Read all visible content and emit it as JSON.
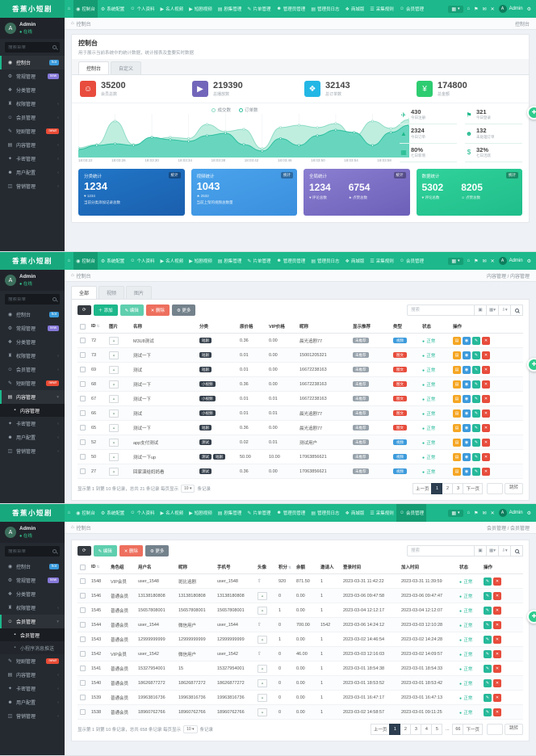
{
  "brand": {
    "logo": "香蕉小短剧"
  },
  "user": {
    "name": "Admin",
    "status": "在线"
  },
  "crumb_home": "控制台",
  "navbar": {
    "items": [
      {
        "icon": "⌂",
        "label": ""
      },
      {
        "icon": "◉",
        "label": "控制台"
      },
      {
        "icon": "⚙",
        "label": "系统配置"
      },
      {
        "icon": "☺",
        "label": "个人资料"
      },
      {
        "icon": "▶",
        "label": "名人视频"
      },
      {
        "icon": "▶",
        "label": "短剧视频"
      },
      {
        "icon": "▤",
        "label": "剧集管理"
      },
      {
        "icon": "✎",
        "label": "片单管理"
      },
      {
        "icon": "☻",
        "label": "管理员管理"
      },
      {
        "icon": "▤",
        "label": "管理员日志"
      },
      {
        "icon": "❖",
        "label": "商城版"
      },
      {
        "icon": "☰",
        "label": "采集规则"
      },
      {
        "icon": "☺",
        "label": "会员管理"
      }
    ],
    "right_icons": [
      {
        "name": "home-icon",
        "glyph": "⌂"
      },
      {
        "name": "bell-icon",
        "glyph": "⚑"
      },
      {
        "name": "message-icon",
        "glyph": "✉"
      },
      {
        "name": "fullscreen-icon",
        "glyph": "✕"
      }
    ],
    "user": "Admin"
  },
  "sidebar": {
    "search_placeholder": "搜索菜单",
    "items": [
      {
        "icon": "◉",
        "label": "控制台",
        "badge": "hot",
        "badge_color": "blue"
      },
      {
        "icon": "⚙",
        "label": "常规管理",
        "badge": "new",
        "badge_color": "purple"
      },
      {
        "icon": "❖",
        "label": "分类管理"
      },
      {
        "icon": "♜",
        "label": "权限管理",
        "arrow": true
      },
      {
        "icon": "☺",
        "label": "会员管理",
        "arrow": true
      },
      {
        "icon": "✎",
        "label": "短剧管理",
        "badge": "new!",
        "badge_color": "red"
      },
      {
        "icon": "▤",
        "label": "内容管理",
        "arrow": true
      },
      {
        "icon": "✦",
        "label": "卡密管理",
        "arrow": true
      },
      {
        "icon": "☻",
        "label": "用户配置",
        "arrow": true
      },
      {
        "icon": "◫",
        "label": "营销管理",
        "arrow": true
      }
    ]
  },
  "screens": [
    {
      "nav_active": 1,
      "sidebar_active": 0,
      "crumb_right": "控制台"
    },
    {
      "nav_active": 1,
      "sidebar_expand": {
        "index": 6,
        "children": [
          "内容管理"
        ],
        "active_child": 0
      },
      "crumb_right": "内容管理 / 内容管理"
    },
    {
      "nav_active": 12,
      "sidebar_expand": {
        "index": 4,
        "children": [
          "会员管理",
          "小程序消息推送"
        ],
        "active_child": 0
      },
      "crumb_right": "会员管理 / 会员管理"
    }
  ],
  "dashboard": {
    "title": "控制台",
    "desc": "用于展示当前系统中的统计数据，统计报表及重要实时数据",
    "tabs": [
      "控制台",
      "自定义"
    ],
    "active_tab": 0,
    "stat_cards": [
      {
        "glyph": "☺",
        "color": "#e84c3d",
        "value": "35200",
        "label": "会员总数"
      },
      {
        "glyph": "▶",
        "color": "#7266ba",
        "value": "219390",
        "label": "总播放数"
      },
      {
        "glyph": "❖",
        "color": "#23b7e5",
        "value": "32143",
        "label": "总订单数"
      },
      {
        "glyph": "¥",
        "color": "#2ecc71",
        "value": "174800",
        "label": "总金额"
      }
    ],
    "mini_stats": [
      {
        "glyph": "✈",
        "value": "430",
        "label": "今日注册"
      },
      {
        "glyph": "⚑",
        "value": "321",
        "label": "今日登录"
      },
      {
        "glyph": "▲",
        "value": "2324",
        "label": "今日订单"
      },
      {
        "glyph": "☻",
        "value": "132",
        "label": "未处理订单"
      },
      {
        "glyph": "▦",
        "value": "80%",
        "label": "七日新增"
      },
      {
        "glyph": "$",
        "value": "32%",
        "label": "七日活跃"
      }
    ],
    "big_cards": [
      {
        "title": "分类统计",
        "badge": "统计",
        "value": "1234",
        "foot1": "♥ 1234",
        "foot2": "当前分类添加记录总数",
        "bg": "linear-gradient(160deg,#2176c7,#1b5fae)"
      },
      {
        "title": "视频统计",
        "badge": "统计",
        "value": "1043",
        "foot1": "★ 2532",
        "foot2": "当前上架的视频总数量",
        "bg": "linear-gradient(160deg,#4aa3ec,#3b8fdd)"
      },
      {
        "title": "全局统计",
        "badge": "统计",
        "cols": [
          {
            "value": "1234",
            "label": "♥ 评论总数"
          },
          {
            "value": "6754",
            "label": "★ 点赞总数"
          }
        ],
        "bg": "linear-gradient(160deg,#8a7fd1,#6c5fb8)"
      },
      {
        "title": "数据统计",
        "badge": "统计",
        "cols": [
          {
            "value": "5302",
            "label": "♥ 评论总数"
          },
          {
            "value": "8205",
            "label": "☺ 点赞总数"
          }
        ],
        "bg": "linear-gradient(160deg,#31d29b,#1fbd8a)"
      }
    ]
  },
  "chart_data": {
    "type": "area",
    "title": "",
    "legend": [
      "成交数",
      "订单数"
    ],
    "legend_position": "top",
    "x": [
      "18:03:22",
      "18:03:26",
      "18:03:30",
      "18:03:34",
      "18:03:38",
      "18:03:42",
      "18:03:46",
      "18:03:50",
      "18:03:54",
      "18:03:58"
    ],
    "series": [
      {
        "name": "订单数",
        "color": "#8fdcc6",
        "fill": "#b8ecdc",
        "values": [
          22,
          30,
          88,
          30,
          42,
          48,
          45,
          80,
          62,
          68,
          20,
          72,
          78,
          72,
          82,
          50,
          88,
          70,
          92
        ]
      },
      {
        "name": "成交数",
        "color": "#2fbfa0",
        "fill": "#5ed3ba",
        "values": [
          18,
          28,
          32,
          28,
          48,
          42,
          38,
          52,
          58,
          30,
          14,
          45,
          28,
          52,
          66,
          60,
          28,
          60,
          78
        ]
      }
    ],
    "ylim": [
      0,
      100
    ],
    "grid": "vertical"
  },
  "content_page": {
    "tabs": [
      "全部",
      "视频",
      "图片"
    ],
    "active_tab": 0,
    "toolbar": [
      {
        "label": "⟳",
        "type": "dark",
        "name": "refresh-button"
      },
      {
        "label": "＋ 添加",
        "type": "green",
        "name": "add-button"
      },
      {
        "label": "✎ 编辑",
        "type": "teal",
        "name": "edit-button"
      },
      {
        "label": "✕ 删除",
        "type": "red",
        "name": "delete-button"
      },
      {
        "label": "⚙ 更多",
        "type": "gray",
        "name": "more-button"
      }
    ],
    "search_placeholder": "搜索",
    "columns": [
      "",
      "ID",
      "图片",
      "名称",
      "分类",
      "原价格",
      "VIP价格",
      "昵称",
      "显示推荐",
      "类型",
      "状态",
      "操作"
    ],
    "rows": [
      {
        "id": "72",
        "name": "M3U8测试",
        "cats": [
          "短剧"
        ],
        "price": "0.36",
        "vip": "0.00",
        "nick": "晨光追剧77",
        "rec": "未推荐",
        "type": "视频",
        "type_color": "blue",
        "status": "正常"
      },
      {
        "id": "73",
        "name": "测试一下",
        "cats": [
          "短剧"
        ],
        "price": "0.01",
        "vip": "0.00",
        "nick": "15001205321",
        "rec": "未推荐",
        "type": "图文",
        "type_color": "red",
        "status": "正常"
      },
      {
        "id": "69",
        "name": "测试",
        "cats": [
          "短剧"
        ],
        "price": "0.01",
        "vip": "0.00",
        "nick": "16672238163",
        "rec": "未推荐",
        "type": "图文",
        "type_color": "red",
        "status": "正常"
      },
      {
        "id": "68",
        "name": "测试一下",
        "cats": [
          "小视频"
        ],
        "price": "0.36",
        "vip": "0.00",
        "nick": "16672238163",
        "rec": "未推荐",
        "type": "图文",
        "type_color": "red",
        "status": "正常"
      },
      {
        "id": "67",
        "name": "测试一下",
        "cats": [
          "小视频"
        ],
        "price": "0.01",
        "vip": "0.01",
        "nick": "16672238163",
        "rec": "未推荐",
        "type": "图文",
        "type_color": "red",
        "status": "正常"
      },
      {
        "id": "66",
        "name": "测试",
        "cats": [
          "小视频"
        ],
        "price": "0.01",
        "vip": "0.01",
        "nick": "晨光追剧77",
        "rec": "未推荐",
        "type": "图文",
        "type_color": "red",
        "status": "正常"
      },
      {
        "id": "65",
        "name": "测试一下",
        "cats": [
          "短剧"
        ],
        "price": "0.36",
        "vip": "0.00",
        "nick": "晨光追剧77",
        "rec": "未推荐",
        "type": "图文",
        "type_color": "red",
        "status": "正常"
      },
      {
        "id": "52",
        "name": "app支付测试",
        "cats": [
          "测试"
        ],
        "price": "0.02",
        "vip": "0.01",
        "nick": "测试用户",
        "rec": "未推荐",
        "type": "视频",
        "type_color": "blue",
        "status": "正常"
      },
      {
        "id": "50",
        "name": "测试一下up",
        "cats": [
          "测试",
          "短剧"
        ],
        "price": "50.00",
        "vip": "10.00",
        "nick": "17063856621",
        "rec": "未推荐",
        "type": "视频",
        "type_color": "blue",
        "status": "正常"
      },
      {
        "id": "27",
        "name": "回家演给妈妈看",
        "cats": [
          "测试"
        ],
        "price": "0.36",
        "vip": "0.00",
        "nick": "17063856621",
        "rec": "未推荐",
        "type": "视频",
        "type_color": "blue",
        "status": "正常"
      }
    ],
    "ops": [
      {
        "glyph": "▤",
        "color": "orange",
        "name": "detail-button"
      },
      {
        "glyph": "◉",
        "color": "blue",
        "name": "preview-button"
      },
      {
        "glyph": "✎",
        "color": "green",
        "name": "row-edit-button"
      },
      {
        "glyph": "✕",
        "color": "red",
        "name": "row-delete-button"
      }
    ],
    "footer_prefix": "显示第 1 到第 10 条记录，总共 21 条记录 每页显示",
    "page_size": "10",
    "footer_suffix": "条记录",
    "pages": [
      "上一页",
      "1",
      "2",
      "3",
      "下一页"
    ],
    "active_page": "1",
    "jump_label": "跳转"
  },
  "member_page": {
    "toolbar": [
      {
        "label": "⟳",
        "type": "dark",
        "name": "refresh-button"
      },
      {
        "label": "✎ 编辑",
        "type": "teal",
        "name": "edit-button"
      },
      {
        "label": "✕ 删除",
        "type": "red",
        "name": "delete-button"
      },
      {
        "label": "⚙ 更多",
        "type": "gray",
        "name": "more-button"
      }
    ],
    "search_placeholder": "搜索",
    "columns": [
      "",
      "ID",
      "角色组",
      "用户名",
      "昵称",
      "手机号",
      "头像",
      "积分",
      "余额",
      "邀请人",
      "登录时间",
      "加入时间",
      "状态",
      "操作"
    ],
    "rows": [
      {
        "id": "1548",
        "role": "VIP会员",
        "username": "user_1548",
        "nick": "斑比追剧",
        "phone": "user_1548",
        "avatar": "up",
        "score": "920",
        "balance": "871.50",
        "inviter": "1",
        "login": "2023-03-31 11:42:22",
        "join": "2023-03-31 11:39:59",
        "status": "正常"
      },
      {
        "id": "1546",
        "role": "普通会员",
        "username": "13138180808",
        "nick": "13138180808",
        "phone": "13138180808",
        "avatar": "img",
        "score": "0",
        "balance": "0.00",
        "inviter": "1",
        "login": "2023-03-06 09:47:58",
        "join": "2023-03-06 09:47:47",
        "status": "正常"
      },
      {
        "id": "1545",
        "role": "普通会员",
        "username": "15657808001",
        "nick": "15657808001",
        "phone": "15657808001",
        "avatar": "img",
        "score": "1",
        "balance": "0.00",
        "inviter": "1",
        "login": "2023-03-04 12:12:17",
        "join": "2023-03-04 12:12:07",
        "status": "正常"
      },
      {
        "id": "1544",
        "role": "普通会员",
        "username": "user_1544",
        "nick": "微信用户",
        "phone": "user_1544",
        "avatar": "up",
        "score": "0",
        "balance": "700.00",
        "inviter": "1542",
        "login": "2023-03-06 14:24:12",
        "join": "2023-03-03 12:10:28",
        "status": "正常"
      },
      {
        "id": "1543",
        "role": "普通会员",
        "username": "12999999999",
        "nick": "12999999999",
        "phone": "12999999999",
        "avatar": "img",
        "score": "1",
        "balance": "0.00",
        "inviter": "1",
        "login": "2023-03-02 14:46:54",
        "join": "2023-03-02 14:24:28",
        "status": "正常"
      },
      {
        "id": "1542",
        "role": "VIP会员",
        "username": "user_1542",
        "nick": "微信用户",
        "phone": "user_1542",
        "avatar": "up",
        "score": "0",
        "balance": "46.00",
        "inviter": "1",
        "login": "2023-03-03 12:16:03",
        "join": "2023-03-02 14:09:57",
        "status": "正常"
      },
      {
        "id": "1541",
        "role": "普通会员",
        "username": "15327954001",
        "nick": "15",
        "phone": "15327954001",
        "avatar": "img",
        "score": "0",
        "balance": "0.00",
        "inviter": "1",
        "login": "2023-03-01 18:54:38",
        "join": "2023-03-01 18:54:33",
        "status": "正常"
      },
      {
        "id": "1540",
        "role": "普通会员",
        "username": "18626877272",
        "nick": "18626877272",
        "phone": "18626877272",
        "avatar": "img",
        "score": "0",
        "balance": "0.00",
        "inviter": "1",
        "login": "2023-03-01 18:53:52",
        "join": "2023-03-01 18:53:42",
        "status": "正常"
      },
      {
        "id": "1539",
        "role": "普通会员",
        "username": "19963816736",
        "nick": "19963816736",
        "phone": "19963816736",
        "avatar": "img",
        "score": "0",
        "balance": "0.00",
        "inviter": "1",
        "login": "2023-03-01 16:47:17",
        "join": "2023-03-01 16:47:13",
        "status": "正常"
      },
      {
        "id": "1538",
        "role": "普通会员",
        "username": "18960762766",
        "nick": "18960762766",
        "phone": "18960762766",
        "avatar": "img",
        "score": "0",
        "balance": "0.00",
        "inviter": "1",
        "login": "2023-03-02 14:58:57",
        "join": "2023-03-01 09:11:25",
        "status": "正常"
      }
    ],
    "ops": [
      {
        "glyph": "✎",
        "color": "green",
        "name": "row-edit-button"
      },
      {
        "glyph": "✕",
        "color": "red",
        "name": "row-delete-button"
      }
    ],
    "footer_prefix": "显示第 1 到第 10 条记录，总共 658 条记录 每页显示",
    "page_size": "10",
    "footer_suffix": "条记录",
    "pages": [
      "上一页",
      "1",
      "2",
      "3",
      "4",
      "5",
      "...",
      "66",
      "下一页"
    ],
    "active_page": "1",
    "jump_label": "跳转"
  }
}
